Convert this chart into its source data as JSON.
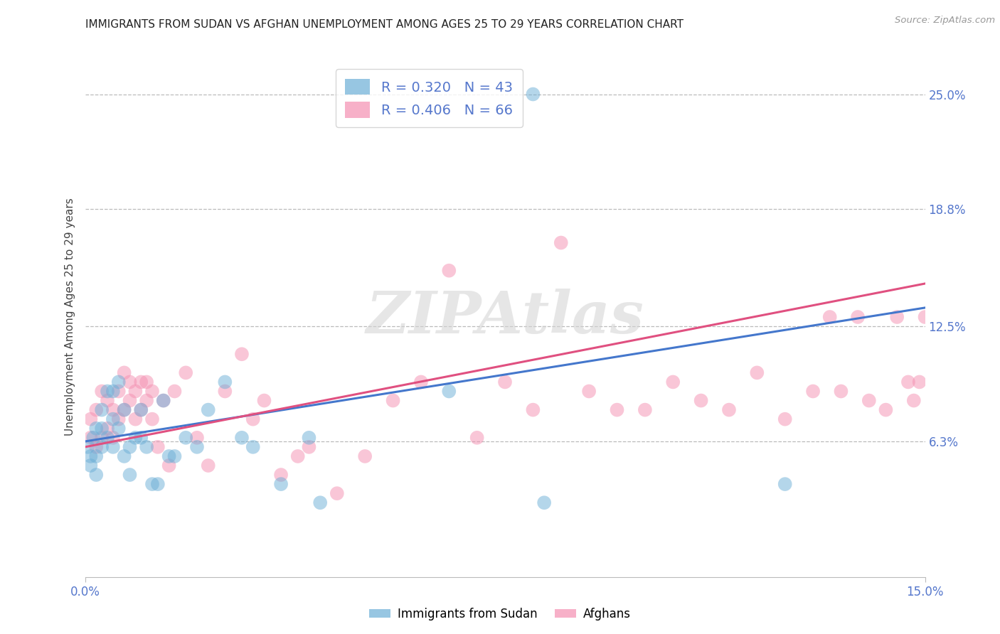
{
  "title": "IMMIGRANTS FROM SUDAN VS AFGHAN UNEMPLOYMENT AMONG AGES 25 TO 29 YEARS CORRELATION CHART",
  "source": "Source: ZipAtlas.com",
  "ylabel": "Unemployment Among Ages 25 to 29 years",
  "xlim": [
    0.0,
    0.15
  ],
  "ylim": [
    -0.01,
    0.27
  ],
  "yticks": [
    0.063,
    0.125,
    0.188,
    0.25
  ],
  "ytick_labels": [
    "6.3%",
    "12.5%",
    "18.8%",
    "25.0%"
  ],
  "blue_R": 0.32,
  "blue_N": 43,
  "pink_R": 0.406,
  "pink_N": 66,
  "blue_color": "#6baed6",
  "pink_color": "#f48fb1",
  "blue_line_color": "#4477cc",
  "pink_line_color": "#e05080",
  "watermark": "ZIPAtlas",
  "legend_label_blue": "Immigrants from Sudan",
  "legend_label_pink": "Afghans",
  "blue_scatter_x": [
    0.0005,
    0.001,
    0.001,
    0.0015,
    0.002,
    0.002,
    0.002,
    0.003,
    0.003,
    0.003,
    0.004,
    0.004,
    0.005,
    0.005,
    0.005,
    0.006,
    0.006,
    0.007,
    0.007,
    0.008,
    0.008,
    0.009,
    0.01,
    0.01,
    0.011,
    0.012,
    0.013,
    0.014,
    0.015,
    0.016,
    0.018,
    0.02,
    0.022,
    0.025,
    0.028,
    0.03,
    0.035,
    0.04,
    0.042,
    0.065,
    0.08,
    0.082,
    0.125
  ],
  "blue_scatter_y": [
    0.06,
    0.05,
    0.055,
    0.065,
    0.045,
    0.055,
    0.07,
    0.06,
    0.07,
    0.08,
    0.065,
    0.09,
    0.06,
    0.075,
    0.09,
    0.07,
    0.095,
    0.055,
    0.08,
    0.045,
    0.06,
    0.065,
    0.065,
    0.08,
    0.06,
    0.04,
    0.04,
    0.085,
    0.055,
    0.055,
    0.065,
    0.06,
    0.08,
    0.095,
    0.065,
    0.06,
    0.04,
    0.065,
    0.03,
    0.09,
    0.25,
    0.03,
    0.04
  ],
  "pink_scatter_x": [
    0.001,
    0.001,
    0.002,
    0.002,
    0.003,
    0.003,
    0.004,
    0.004,
    0.005,
    0.005,
    0.006,
    0.006,
    0.007,
    0.007,
    0.008,
    0.008,
    0.009,
    0.009,
    0.01,
    0.01,
    0.011,
    0.011,
    0.012,
    0.012,
    0.013,
    0.014,
    0.015,
    0.016,
    0.018,
    0.02,
    0.022,
    0.025,
    0.028,
    0.03,
    0.032,
    0.035,
    0.038,
    0.04,
    0.045,
    0.05,
    0.055,
    0.06,
    0.065,
    0.07,
    0.075,
    0.08,
    0.085,
    0.09,
    0.095,
    0.1,
    0.105,
    0.11,
    0.115,
    0.12,
    0.125,
    0.13,
    0.133,
    0.135,
    0.138,
    0.14,
    0.143,
    0.145,
    0.147,
    0.148,
    0.149,
    0.15
  ],
  "pink_scatter_y": [
    0.065,
    0.075,
    0.06,
    0.08,
    0.065,
    0.09,
    0.07,
    0.085,
    0.065,
    0.08,
    0.075,
    0.09,
    0.08,
    0.1,
    0.085,
    0.095,
    0.075,
    0.09,
    0.08,
    0.095,
    0.085,
    0.095,
    0.075,
    0.09,
    0.06,
    0.085,
    0.05,
    0.09,
    0.1,
    0.065,
    0.05,
    0.09,
    0.11,
    0.075,
    0.085,
    0.045,
    0.055,
    0.06,
    0.035,
    0.055,
    0.085,
    0.095,
    0.155,
    0.065,
    0.095,
    0.08,
    0.17,
    0.09,
    0.08,
    0.08,
    0.095,
    0.085,
    0.08,
    0.1,
    0.075,
    0.09,
    0.13,
    0.09,
    0.13,
    0.085,
    0.08,
    0.13,
    0.095,
    0.085,
    0.095,
    0.13
  ],
  "blue_trend": [
    0.063,
    0.135
  ],
  "pink_trend": [
    0.06,
    0.148
  ]
}
